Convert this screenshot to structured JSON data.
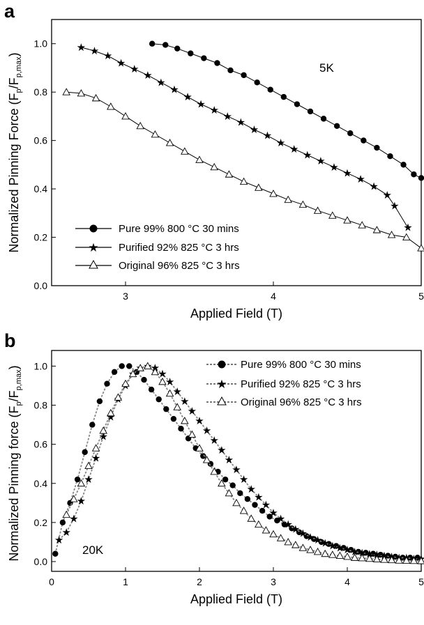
{
  "chart_data": [
    {
      "type": "line",
      "panel_label": "a",
      "annotation": "5K",
      "xlabel": "Applied Field (T)",
      "ylabel": "Normalized Pinning Force (F",
      "ylabel_sub1": "p",
      "ylabel_mid": "/F",
      "ylabel_sub2": "p,max",
      "ylabel_end": ")",
      "xlim": [
        2.5,
        5.0
      ],
      "ylim": [
        0.0,
        1.1
      ],
      "xticks": [
        3,
        4,
        5
      ],
      "xtick_labels": [
        "3",
        "4",
        "5"
      ],
      "yticks": [
        0.0,
        0.2,
        0.4,
        0.6,
        0.8,
        1.0
      ],
      "ytick_labels": [
        "0.0",
        "0.2",
        "0.4",
        "0.6",
        "0.8",
        "1.0"
      ],
      "legend_position": "bottom-left",
      "series": [
        {
          "name": "Pure 99% 800 °C 30 mins",
          "marker": "circle",
          "x": [
            3.18,
            3.27,
            3.35,
            3.44,
            3.53,
            3.62,
            3.71,
            3.8,
            3.89,
            3.98,
            4.07,
            4.16,
            4.25,
            4.34,
            4.43,
            4.52,
            4.61,
            4.7,
            4.79,
            4.88,
            4.95,
            5.0
          ],
          "y": [
            1.0,
            0.995,
            0.98,
            0.96,
            0.94,
            0.92,
            0.89,
            0.87,
            0.84,
            0.81,
            0.78,
            0.75,
            0.72,
            0.69,
            0.66,
            0.63,
            0.6,
            0.57,
            0.535,
            0.5,
            0.46,
            0.445
          ]
        },
        {
          "name": "Purified 92% 825 °C 3 hrs",
          "marker": "star",
          "x": [
            2.7,
            2.79,
            2.88,
            2.97,
            3.06,
            3.15,
            3.24,
            3.33,
            3.42,
            3.51,
            3.6,
            3.69,
            3.78,
            3.87,
            3.96,
            4.05,
            4.14,
            4.23,
            4.32,
            4.41,
            4.5,
            4.59,
            4.68,
            4.77,
            4.82,
            4.91
          ],
          "y": [
            0.985,
            0.97,
            0.95,
            0.92,
            0.895,
            0.87,
            0.84,
            0.81,
            0.78,
            0.75,
            0.725,
            0.7,
            0.675,
            0.645,
            0.62,
            0.59,
            0.565,
            0.54,
            0.515,
            0.49,
            0.465,
            0.44,
            0.41,
            0.375,
            0.33,
            0.24
          ]
        },
        {
          "name": "Original 96% 825 °C 3 hrs",
          "marker": "triangle-open",
          "x": [
            2.6,
            2.7,
            2.8,
            2.9,
            3.0,
            3.1,
            3.2,
            3.3,
            3.4,
            3.5,
            3.6,
            3.7,
            3.8,
            3.9,
            4.0,
            4.1,
            4.2,
            4.3,
            4.4,
            4.5,
            4.6,
            4.7,
            4.8,
            4.9,
            5.0
          ],
          "y": [
            0.8,
            0.795,
            0.775,
            0.74,
            0.7,
            0.66,
            0.625,
            0.59,
            0.555,
            0.52,
            0.49,
            0.46,
            0.43,
            0.405,
            0.38,
            0.355,
            0.335,
            0.31,
            0.29,
            0.27,
            0.25,
            0.23,
            0.21,
            0.2,
            0.155
          ]
        }
      ]
    },
    {
      "type": "line",
      "panel_label": "b",
      "annotation": "20K",
      "xlabel": "Applied Field (T)",
      "ylabel": "Normalized Pinning force (F",
      "ylabel_sub1": "p",
      "ylabel_mid": "/F",
      "ylabel_sub2": "p,max",
      "ylabel_end": ")",
      "xlim": [
        0.0,
        5.0
      ],
      "ylim": [
        -0.05,
        1.08
      ],
      "xticks": [
        0,
        1,
        2,
        3,
        4,
        5
      ],
      "xtick_labels": [
        "0",
        "1",
        "2",
        "3",
        "4",
        "5"
      ],
      "yticks": [
        0.0,
        0.2,
        0.4,
        0.6,
        0.8,
        1.0
      ],
      "ytick_labels": [
        "0.0",
        "0.2",
        "0.4",
        "0.6",
        "0.8",
        "1.0"
      ],
      "legend_position": "top-right",
      "series": [
        {
          "name": "Pure 99% 800 °C 30 mins",
          "marker": "circle",
          "x": [
            0.05,
            0.15,
            0.25,
            0.35,
            0.45,
            0.55,
            0.65,
            0.75,
            0.85,
            0.95,
            1.05,
            1.15,
            1.25,
            1.35,
            1.45,
            1.55,
            1.65,
            1.75,
            1.85,
            1.95,
            2.05,
            2.15,
            2.25,
            2.35,
            2.45,
            2.55,
            2.65,
            2.75,
            2.85,
            2.95,
            3.05,
            3.15,
            3.25,
            3.35,
            3.45,
            3.55,
            3.65,
            3.75,
            3.85,
            3.95,
            4.05,
            4.15,
            4.25,
            4.35,
            4.45,
            4.55,
            4.65,
            4.75,
            4.85,
            4.95
          ],
          "y": [
            0.04,
            0.2,
            0.3,
            0.42,
            0.56,
            0.7,
            0.82,
            0.91,
            0.97,
            1.0,
            1.0,
            0.97,
            0.93,
            0.88,
            0.83,
            0.78,
            0.73,
            0.68,
            0.63,
            0.58,
            0.54,
            0.5,
            0.46,
            0.42,
            0.39,
            0.35,
            0.32,
            0.29,
            0.26,
            0.23,
            0.21,
            0.19,
            0.17,
            0.15,
            0.13,
            0.115,
            0.1,
            0.09,
            0.08,
            0.07,
            0.06,
            0.05,
            0.045,
            0.04,
            0.035,
            0.03,
            0.025,
            0.02,
            0.02,
            0.02
          ]
        },
        {
          "name": "Purified 92% 825 °C 3 hrs",
          "marker": "star",
          "x": [
            0.1,
            0.2,
            0.3,
            0.4,
            0.5,
            0.6,
            0.7,
            0.8,
            0.9,
            1.0,
            1.1,
            1.2,
            1.3,
            1.4,
            1.5,
            1.6,
            1.7,
            1.8,
            1.9,
            2.0,
            2.1,
            2.2,
            2.3,
            2.4,
            2.5,
            2.6,
            2.7,
            2.8,
            2.9,
            3.0,
            3.1,
            3.2,
            3.3,
            3.4,
            3.5,
            3.6,
            3.7,
            3.8,
            3.9,
            4.0,
            4.1,
            4.2,
            4.3,
            4.4,
            4.5,
            4.6,
            4.7,
            4.8,
            4.9,
            5.0
          ],
          "y": [
            0.11,
            0.15,
            0.22,
            0.31,
            0.42,
            0.53,
            0.64,
            0.74,
            0.83,
            0.9,
            0.96,
            0.99,
            1.0,
            0.99,
            0.96,
            0.92,
            0.87,
            0.82,
            0.77,
            0.72,
            0.67,
            0.62,
            0.57,
            0.52,
            0.47,
            0.42,
            0.37,
            0.33,
            0.29,
            0.25,
            0.22,
            0.19,
            0.165,
            0.145,
            0.125,
            0.11,
            0.095,
            0.08,
            0.07,
            0.06,
            0.05,
            0.045,
            0.04,
            0.035,
            0.03,
            0.025,
            0.02,
            0.02,
            0.015,
            0.015
          ]
        },
        {
          "name": "Original 96% 825 °C 3 hrs",
          "marker": "triangle-open",
          "x": [
            0.2,
            0.3,
            0.4,
            0.5,
            0.6,
            0.7,
            0.8,
            0.9,
            1.0,
            1.1,
            1.2,
            1.3,
            1.4,
            1.5,
            1.6,
            1.7,
            1.8,
            1.9,
            2.0,
            2.1,
            2.2,
            2.3,
            2.4,
            2.5,
            2.6,
            2.7,
            2.8,
            2.9,
            3.0,
            3.1,
            3.2,
            3.3,
            3.4,
            3.5,
            3.6,
            3.7,
            3.8,
            3.9,
            4.0,
            4.1,
            4.2,
            4.3,
            4.4,
            4.5,
            4.6,
            4.7,
            4.8,
            4.9,
            5.0
          ],
          "y": [
            0.24,
            0.32,
            0.4,
            0.49,
            0.58,
            0.67,
            0.76,
            0.84,
            0.91,
            0.96,
            0.99,
            1.0,
            0.97,
            0.92,
            0.86,
            0.79,
            0.72,
            0.65,
            0.58,
            0.52,
            0.46,
            0.4,
            0.35,
            0.3,
            0.26,
            0.22,
            0.19,
            0.16,
            0.14,
            0.12,
            0.1,
            0.085,
            0.07,
            0.06,
            0.05,
            0.04,
            0.035,
            0.03,
            0.025,
            0.02,
            0.018,
            0.015,
            0.012,
            0.01,
            0.008,
            0.006,
            0.005,
            0.004,
            0.003
          ]
        }
      ]
    }
  ]
}
